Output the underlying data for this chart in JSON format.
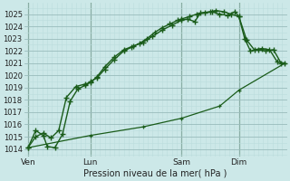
{
  "bg_color": "#cce8e8",
  "grid_major_color": "#99bbbb",
  "grid_minor_color": "#bbdddd",
  "line_color": "#1a5c1a",
  "title": "Pression niveau de la mer( hPa )",
  "ylabel_vals": [
    1014,
    1015,
    1016,
    1017,
    1018,
    1019,
    1020,
    1021,
    1022,
    1023,
    1024,
    1025
  ],
  "ylim": [
    1013.4,
    1025.9
  ],
  "xlim": [
    -0.2,
    13.5
  ],
  "xtick_labels": [
    "Ven",
    "Lun",
    "Sam",
    "Dim"
  ],
  "xtick_positions": [
    0,
    3.25,
    8.0,
    11.0
  ],
  "vline_positions": [
    0,
    3.25,
    8.0,
    11.0
  ],
  "line1_x": [
    0,
    0.4,
    0.8,
    1.2,
    1.6,
    2.0,
    2.5,
    3.0,
    3.25,
    3.6,
    4.0,
    4.5,
    5.0,
    5.5,
    6.0,
    6.5,
    7.0,
    7.5,
    8.0,
    8.3,
    8.7,
    9.0,
    9.5,
    9.8,
    10.2,
    10.6,
    11.0,
    11.4,
    11.8,
    12.2,
    12.6,
    13.0,
    13.4
  ],
  "line1_y": [
    1014.1,
    1015.0,
    1015.3,
    1014.9,
    1015.5,
    1018.2,
    1019.1,
    1019.3,
    1019.4,
    1019.9,
    1020.7,
    1021.5,
    1022.1,
    1022.4,
    1022.7,
    1023.2,
    1023.7,
    1024.1,
    1024.5,
    1024.6,
    1024.4,
    1025.1,
    1025.2,
    1025.3,
    1025.2,
    1025.0,
    1024.8,
    1022.9,
    1022.1,
    1022.2,
    1022.1,
    1021.1,
    1021.0
  ],
  "line2_x": [
    0,
    0.4,
    0.8,
    1.0,
    1.4,
    1.8,
    2.2,
    2.6,
    3.0,
    3.25,
    3.6,
    4.0,
    4.5,
    5.0,
    5.4,
    5.8,
    6.2,
    6.6,
    7.0,
    7.4,
    7.8,
    8.0,
    8.4,
    8.8,
    9.2,
    9.6,
    10.0,
    10.4,
    10.8,
    11.0,
    11.3,
    11.6,
    12.0,
    12.4,
    12.8,
    13.2
  ],
  "line2_y": [
    1014.1,
    1015.5,
    1015.1,
    1014.2,
    1014.1,
    1015.2,
    1017.9,
    1018.9,
    1019.2,
    1019.5,
    1019.8,
    1020.5,
    1021.3,
    1022.0,
    1022.3,
    1022.6,
    1023.0,
    1023.5,
    1023.9,
    1024.2,
    1024.5,
    1024.6,
    1024.8,
    1025.0,
    1025.1,
    1025.2,
    1025.0,
    1024.9,
    1025.2,
    1024.8,
    1023.0,
    1022.0,
    1022.1,
    1022.0,
    1022.1,
    1021.0
  ],
  "line3_x": [
    0,
    3.25,
    6.0,
    8.0,
    10.0,
    11.0,
    13.4
  ],
  "line3_y": [
    1014.1,
    1015.1,
    1015.8,
    1016.5,
    1017.5,
    1018.8,
    1021.0
  ]
}
